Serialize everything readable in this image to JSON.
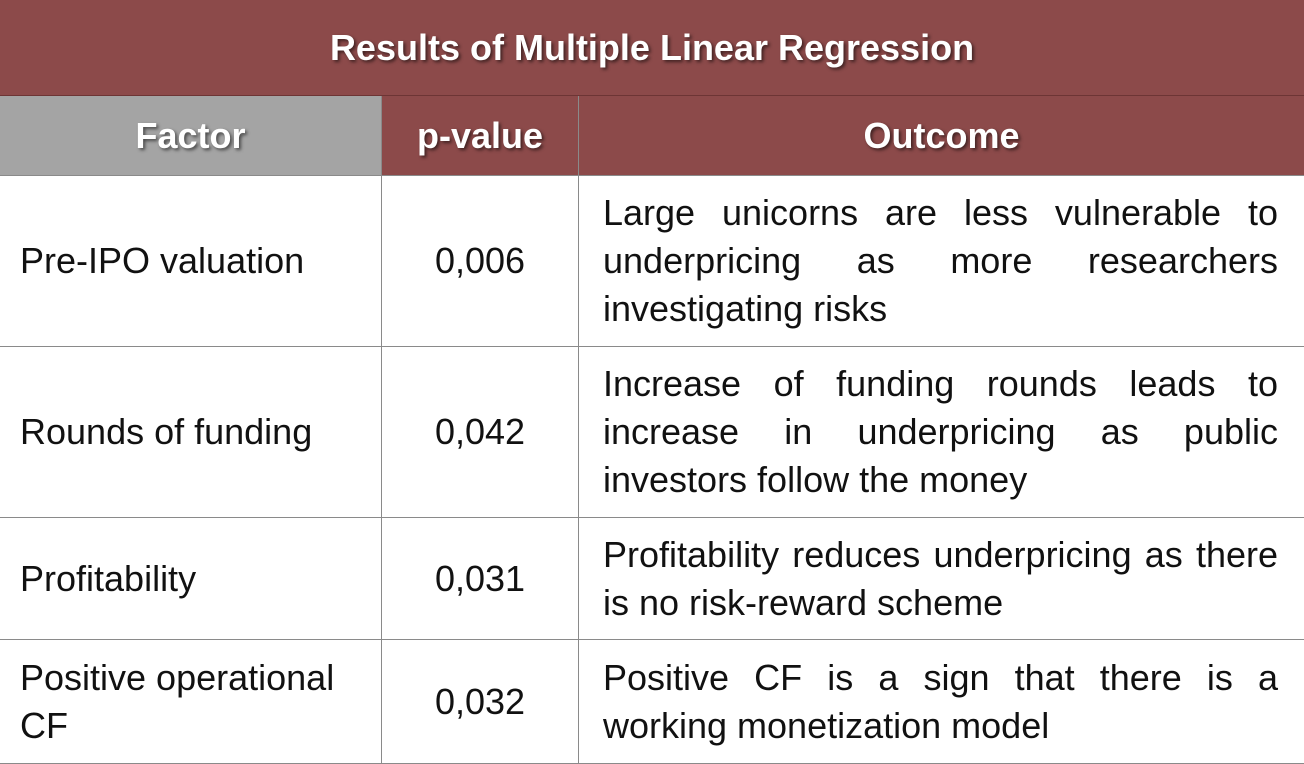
{
  "title": "Results of Multiple Linear Regression",
  "headers": {
    "factor": "Factor",
    "pvalue": "p-value",
    "outcome": "Outcome"
  },
  "rows": [
    {
      "factor": "Pre-IPO valuation",
      "pvalue": "0,006",
      "outcome": "Large unicorns are less vulnerable to underpricing as more researchers investigating risks"
    },
    {
      "factor": "Rounds of funding",
      "pvalue": "0,042",
      "outcome": "Increase of funding rounds leads to increase in underpricing as public investors follow the money"
    },
    {
      "factor": "Profitability",
      "pvalue": "0,031",
      "outcome": "Profitability reduces underpricing as there is no risk-reward scheme"
    },
    {
      "factor": "Positive operational CF",
      "pvalue": "0,032",
      "outcome": "Positive CF is a sign that there is a working monetization model"
    }
  ],
  "colors": {
    "maroon": "#8c4a4a",
    "gray_header": "#a4a4a4",
    "border": "#8a8a8a"
  }
}
